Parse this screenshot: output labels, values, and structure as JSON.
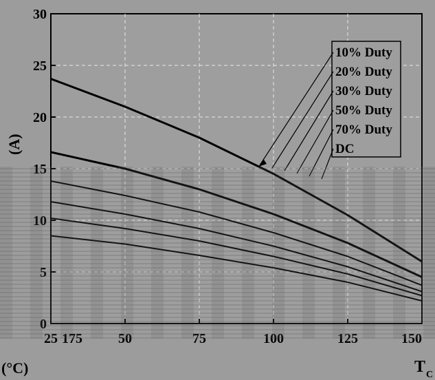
{
  "chart_data": {
    "type": "line",
    "x_unit_label": "(°C)",
    "xlabel": "T",
    "xlabel_sub": "C",
    "ylabel": "(A)",
    "xlim": [
      25,
      150
    ],
    "ylim": [
      0,
      30
    ],
    "xticks": [
      25,
      50,
      75,
      100,
      125,
      150
    ],
    "xtick_labels": [
      "25",
      "50",
      "75",
      "100",
      "125",
      "150"
    ],
    "extra_xtick_labels": [
      "175"
    ],
    "yticks": [
      0,
      5,
      10,
      15,
      20,
      25,
      30
    ],
    "ytick_labels": [
      "0",
      "5",
      "10",
      "15",
      "20",
      "25",
      "30"
    ],
    "grid": true,
    "legend_placement": "top-right",
    "series": [
      {
        "name": "10% Duty",
        "x": [
          25,
          50,
          75,
          100,
          125,
          150,
          175
        ],
        "y": [
          23.7,
          21.0,
          18.0,
          14.5,
          10.5,
          6.0,
          0
        ]
      },
      {
        "name": "20% Duty",
        "x": [
          25,
          50,
          75,
          100,
          125,
          150,
          175
        ],
        "y": [
          16.6,
          15.0,
          13.0,
          10.6,
          7.8,
          4.5,
          0
        ]
      },
      {
        "name": "30% Duty",
        "x": [
          25,
          50,
          75,
          100,
          125,
          150,
          175
        ],
        "y": [
          13.8,
          12.4,
          10.8,
          8.8,
          6.5,
          3.7,
          0
        ]
      },
      {
        "name": "50% Duty",
        "x": [
          25,
          50,
          75,
          100,
          125,
          150,
          175
        ],
        "y": [
          11.8,
          10.6,
          9.2,
          7.5,
          5.5,
          3.1,
          0
        ]
      },
      {
        "name": "70% Duty",
        "x": [
          25,
          50,
          75,
          100,
          125,
          150,
          175
        ],
        "y": [
          10.2,
          9.2,
          8.0,
          6.5,
          4.8,
          2.7,
          0
        ]
      },
      {
        "name": "DC",
        "x": [
          25,
          50,
          75,
          100,
          125,
          150,
          175
        ],
        "y": [
          8.5,
          7.7,
          6.6,
          5.4,
          4.0,
          2.2,
          0
        ]
      }
    ]
  }
}
